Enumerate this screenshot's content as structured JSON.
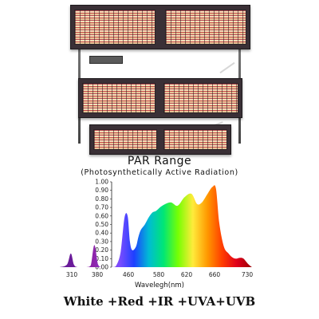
{
  "title": "PAR Range",
  "subtitle": "(Photosynthetically Active Radiation)",
  "footer": "White +Red +IR +UVA+UVB",
  "chart_data": {
    "type": "area",
    "xlabel": "Wavelegh(nm)",
    "ylabel": "",
    "x_ticks": [
      310,
      380,
      460,
      580,
      620,
      660,
      730
    ],
    "y_ticks": [
      0.0,
      0.1,
      0.2,
      0.3,
      0.4,
      0.5,
      0.6,
      0.7,
      0.8,
      0.9,
      1.0
    ],
    "y_tick_labels": [
      "0.00",
      "0.10",
      "0.20",
      "0.30",
      "0.40",
      "0.50",
      "0.60",
      "0.70",
      "0.80",
      "0.90",
      "1.00"
    ],
    "ylim": [
      0,
      1.0
    ],
    "series": [
      {
        "values": [
          [
            285,
            0.0
          ],
          [
            300,
            0.03
          ],
          [
            308,
            0.16
          ],
          [
            316,
            0.03
          ],
          [
            326,
            0.0
          ],
          [
            350,
            0.0
          ],
          [
            362,
            0.02
          ],
          [
            372,
            0.26
          ],
          [
            382,
            0.03
          ],
          [
            392,
            0.0
          ],
          [
            420,
            0.0
          ],
          [
            430,
            0.03
          ],
          [
            440,
            0.18
          ],
          [
            450,
            0.58
          ],
          [
            458,
            0.6
          ],
          [
            466,
            0.3
          ],
          [
            475,
            0.2
          ],
          [
            490,
            0.24
          ],
          [
            500,
            0.36
          ],
          [
            510,
            0.44
          ],
          [
            525,
            0.5
          ],
          [
            540,
            0.58
          ],
          [
            555,
            0.64
          ],
          [
            570,
            0.66
          ],
          [
            585,
            0.72
          ],
          [
            597,
            0.76
          ],
          [
            607,
            0.72
          ],
          [
            617,
            0.82
          ],
          [
            627,
            0.86
          ],
          [
            635,
            0.74
          ],
          [
            642,
            0.76
          ],
          [
            650,
            0.86
          ],
          [
            657,
            0.94
          ],
          [
            663,
            0.92
          ],
          [
            670,
            0.52
          ],
          [
            680,
            0.24
          ],
          [
            690,
            0.16
          ],
          [
            697,
            0.12
          ],
          [
            705,
            0.1
          ],
          [
            715,
            0.11
          ],
          [
            722,
            0.1
          ],
          [
            732,
            0.04
          ],
          [
            745,
            0.0
          ]
        ]
      }
    ]
  }
}
